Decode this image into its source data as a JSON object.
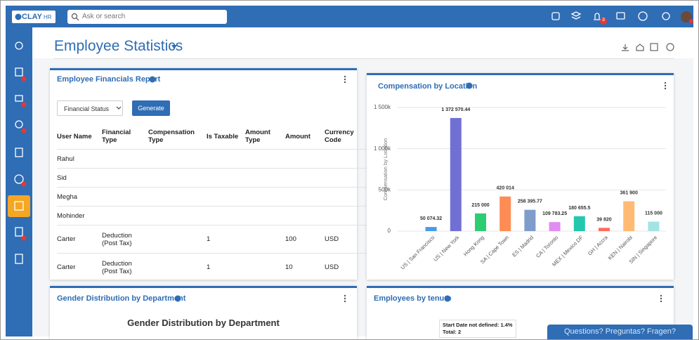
{
  "header": {
    "logo": "CLAY",
    "logo_sub": "HR",
    "search_placeholder": "Ask or search",
    "notification_count": 3
  },
  "page": {
    "title": "Employee Statistics"
  },
  "financials": {
    "title": "Employee Financials Report",
    "filter": "Financial Status",
    "button": "Generate",
    "columns": [
      "User Name",
      "Financial Type",
      "Compensation Type",
      "Is Taxable",
      "Amount Type",
      "Amount",
      "Currency Code"
    ],
    "rows": [
      [
        "Rahul",
        null,
        null,
        null,
        null,
        null,
        null
      ],
      [
        "Sid",
        null,
        null,
        null,
        null,
        null,
        null
      ],
      [
        "Megha",
        null,
        null,
        null,
        null,
        null,
        null
      ],
      [
        "Mohinder",
        null,
        null,
        null,
        null,
        null,
        null
      ],
      [
        "Carter",
        "Deduction (Post Tax)",
        null,
        1,
        null,
        100,
        "USD"
      ],
      [
        "Carter",
        "Deduction (Post Tax)",
        null,
        1,
        null,
        10,
        "USD"
      ]
    ]
  },
  "compensation": {
    "title": "Compensation by Location",
    "chart_data": {
      "type": "bar",
      "y_label": "Compensation by Location",
      "categories": [
        "US | San Francisco",
        "US | New York",
        "Hong Kong",
        "SA | Cape Town",
        "ES | Madrid",
        "CA | Toronto",
        "MEX | Mexico DF",
        "GH | Accra",
        "KEN | Nairobi",
        "SIN | Singapore"
      ],
      "values": [
        50074.32,
        1372570.44,
        215000,
        420014,
        258395.77,
        109783.25,
        180655.5,
        39820,
        361900,
        115000
      ],
      "value_labels": [
        "50 074.32",
        "1 372 570.44",
        "215 000",
        "420 014",
        "258 395.77",
        "109 783.25",
        "180 655.5",
        "39 820",
        "361 900",
        "115 000"
      ],
      "colors": [
        "#4a9ae6",
        "#7070d4",
        "#2ecc71",
        "#ff8c55",
        "#7f9ccb",
        "#e08cf0",
        "#22c7ae",
        "#ff6b5e",
        "#ffbb74",
        "#a3e3e3"
      ],
      "ylim": [
        0,
        1500000
      ],
      "yticks": [
        0,
        {
          "value": 500000,
          "label": "500k"
        },
        {
          "value": 1000000,
          "label": "1 000k"
        },
        {
          "value": 1500000,
          "label": "1 500k"
        }
      ],
      "grid": true
    }
  },
  "gender": {
    "title": "Gender Distribution by Department",
    "chart_title": "Gender Distribution by Department"
  },
  "tenure": {
    "title": "Employees by tenure",
    "note": "Start Date not defined: 1.4%",
    "total": "Total: 2"
  },
  "chat": {
    "label": "Questions? Preguntas? Fragen?"
  }
}
